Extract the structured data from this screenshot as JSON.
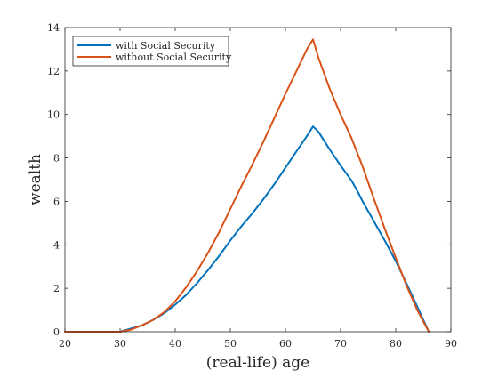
{
  "chart_data": {
    "type": "line",
    "title": "",
    "xlabel": "(real-life) age",
    "ylabel": "wealth",
    "xlim": [
      20,
      90
    ],
    "ylim": [
      0,
      14
    ],
    "xticks": [
      "20",
      "30",
      "40",
      "50",
      "60",
      "70",
      "80",
      "90"
    ],
    "yticks": [
      "0",
      "2",
      "4",
      "6",
      "8",
      "10",
      "12",
      "14"
    ],
    "grid": false,
    "legend": "top-left",
    "series": [
      {
        "name": "with Social Security",
        "color": "#0072BD",
        "x": [
          20,
          30,
          32,
          34,
          36,
          38,
          40,
          42,
          44,
          46,
          48,
          50,
          52,
          54,
          56,
          58,
          60,
          62,
          64,
          65,
          66,
          68,
          70,
          72,
          73,
          74,
          76,
          78,
          80,
          82,
          84,
          86
        ],
        "y": [
          0,
          0,
          0.15,
          0.3,
          0.55,
          0.85,
          1.25,
          1.7,
          2.25,
          2.85,
          3.5,
          4.2,
          4.85,
          5.45,
          6.1,
          6.8,
          7.55,
          8.3,
          9.05,
          9.45,
          9.2,
          8.4,
          7.65,
          6.95,
          6.5,
          6.0,
          5.1,
          4.2,
          3.25,
          2.2,
          1.1,
          0
        ]
      },
      {
        "name": "without Social Security",
        "color": "#D95319",
        "x": [
          20,
          30,
          32,
          34,
          36,
          38,
          40,
          42,
          44,
          46,
          48,
          50,
          52,
          54,
          56,
          58,
          60,
          62,
          64,
          65,
          66,
          68,
          70,
          72,
          74,
          76,
          78,
          80,
          82,
          84,
          86
        ],
        "y": [
          0,
          0,
          0.1,
          0.3,
          0.55,
          0.9,
          1.4,
          2.05,
          2.8,
          3.65,
          4.6,
          5.65,
          6.7,
          7.7,
          8.75,
          9.85,
          10.95,
          12.0,
          13.05,
          13.45,
          12.6,
          11.2,
          10.0,
          8.9,
          7.6,
          6.15,
          4.75,
          3.4,
          2.1,
          0.95,
          0
        ]
      }
    ]
  }
}
